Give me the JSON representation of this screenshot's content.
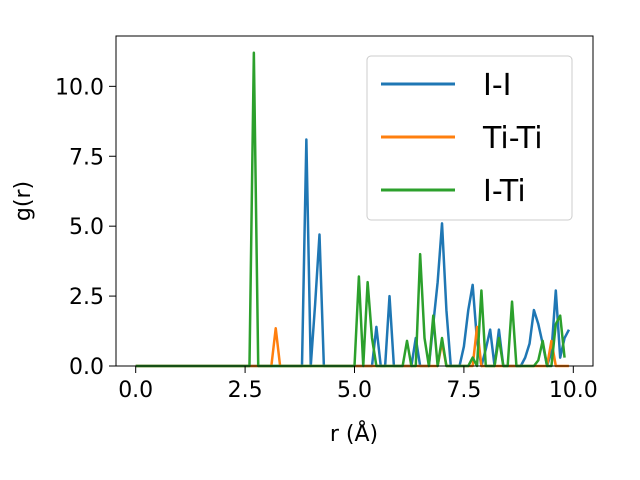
{
  "chart_data": {
    "type": "line",
    "xlabel": "r (Å)",
    "ylabel": "g(r)",
    "xlim": [
      -0.45,
      10.45
    ],
    "ylim": [
      0,
      11.8
    ],
    "xticks": [
      0.0,
      2.5,
      5.0,
      7.5,
      10.0
    ],
    "xtick_labels": [
      "0.0",
      "2.5",
      "5.0",
      "7.5",
      "10.0"
    ],
    "yticks": [
      0.0,
      2.5,
      5.0,
      7.5,
      10.0
    ],
    "ytick_labels": [
      "0.0",
      "2.5",
      "5.0",
      "7.5",
      "10.0"
    ],
    "grid": false,
    "legend_position": "top-right",
    "series": [
      {
        "name": "I-I",
        "color": "#1f77b4",
        "x": [
          0,
          3.8,
          3.9,
          4.0,
          4.1,
          4.2,
          4.3,
          5.4,
          5.5,
          5.6,
          5.7,
          5.8,
          5.9,
          6.3,
          6.4,
          6.5,
          6.6,
          6.7,
          6.8,
          6.9,
          7.0,
          7.1,
          7.2,
          7.3,
          7.4,
          7.5,
          7.6,
          7.7,
          7.8,
          7.9,
          8.0,
          8.1,
          8.2,
          8.3,
          8.4,
          8.5,
          8.6,
          8.7,
          8.8,
          8.9,
          9.0,
          9.1,
          9.2,
          9.3,
          9.4,
          9.5,
          9.6,
          9.7,
          9.8,
          9.9
        ],
        "y": [
          0,
          0,
          8.1,
          0,
          2.2,
          4.7,
          0,
          0,
          1.4,
          0,
          0,
          2.5,
          0,
          0,
          1.0,
          0,
          0,
          0,
          1.5,
          3.0,
          5.1,
          2.0,
          0,
          0,
          0,
          0.7,
          2.0,
          2.9,
          0.9,
          0,
          0.6,
          1.3,
          0,
          1.3,
          0,
          0,
          0,
          0,
          0,
          0.3,
          0.8,
          2.0,
          1.5,
          0.8,
          0,
          0.5,
          2.7,
          0.3,
          1.0,
          1.3
        ]
      },
      {
        "name": "Ti-Ti",
        "color": "#ff7f0e",
        "x": [
          0,
          3.1,
          3.2,
          3.3,
          6.9,
          7.0,
          7.1,
          7.7,
          7.8,
          7.9,
          8.0,
          9.4,
          9.5,
          9.6,
          9.7,
          9.9
        ],
        "y": [
          0,
          0,
          1.35,
          0,
          0,
          0.85,
          0,
          0,
          1.4,
          0,
          0,
          0,
          0.9,
          0,
          0,
          0
        ]
      },
      {
        "name": "I-Ti",
        "color": "#2ca02c",
        "x": [
          0,
          2.6,
          2.7,
          2.8,
          5.0,
          5.1,
          5.2,
          5.3,
          5.4,
          5.5,
          5.6,
          6.1,
          6.2,
          6.3,
          6.4,
          6.5,
          6.6,
          6.7,
          6.8,
          6.9,
          7.0,
          7.1,
          7.6,
          7.7,
          7.8,
          7.9,
          8.0,
          8.1,
          8.2,
          8.3,
          8.4,
          8.5,
          8.6,
          8.7,
          8.8,
          9.0,
          9.1,
          9.2,
          9.3,
          9.4,
          9.5,
          9.6,
          9.7,
          9.8
        ],
        "y": [
          0,
          0,
          11.2,
          0,
          0,
          3.2,
          0,
          3.0,
          1.0,
          0,
          0,
          0,
          0.9,
          0,
          0,
          4.0,
          1.0,
          0,
          1.8,
          0,
          1.0,
          0,
          0,
          0.3,
          0,
          2.7,
          0,
          0,
          0,
          1.0,
          0,
          0,
          2.3,
          0,
          0,
          0,
          0,
          0.2,
          0.9,
          0,
          0,
          1.5,
          1.8,
          0.3
        ]
      }
    ]
  }
}
